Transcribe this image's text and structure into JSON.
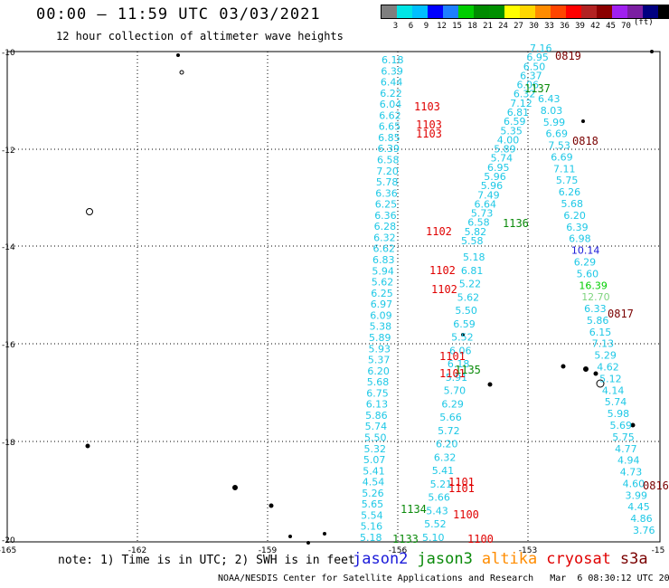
{
  "header": {
    "title": "00:00 – 11:59 UTC 03/03/2021",
    "subtitle": "12 hour collection of altimeter wave heights"
  },
  "legend": {
    "unit": "(ft)",
    "colors": [
      "#7f7f7f",
      "#00e5e5",
      "#00bfff",
      "#0000ff",
      "#1e7fff",
      "#00cd00",
      "#008b00",
      "#009000",
      "#ffff00",
      "#ffd700",
      "#ff8c00",
      "#ff4500",
      "#ff0000",
      "#b22222",
      "#8b0000",
      "#a020f0",
      "#7b1fa2",
      "#000080",
      "#000000"
    ],
    "ticks": [
      "3",
      "6",
      "9",
      "12",
      "15",
      "18",
      "21",
      "24",
      "27",
      "30",
      "33",
      "36",
      "39",
      "42",
      "45",
      "70"
    ]
  },
  "map": {
    "lat_labels": [
      "-10",
      "-12",
      "-14",
      "-16",
      "-18",
      "-20"
    ],
    "lon_labels": [
      "-165",
      "-162",
      "-159",
      "-156",
      "-153",
      "-15"
    ],
    "track_color": "#1ec8e6",
    "tracks": [
      {
        "id": "track-jason2-west",
        "values": [
          "6.18",
          "6.39",
          "6.44",
          "6.22",
          "6.04",
          "6.62",
          "6.65",
          "6.85",
          "6.39",
          "6.58",
          "7.20",
          "5.78",
          "6.36",
          "6.25",
          "6.36",
          "6.28",
          "6.32",
          "6.62",
          "6.83",
          "5.94",
          "5.62",
          "6.25",
          "6.97",
          "6.09",
          "5.38",
          "5.89",
          "5.93",
          "5.37",
          "6.20",
          "5.68",
          "6.75",
          "6.13",
          "5.86",
          "5.74",
          "5.50",
          "5.32",
          "5.07",
          "5.41",
          "4.54",
          "5.26",
          "5.65",
          "5.54",
          "5.16",
          "5.18"
        ]
      },
      {
        "id": "track-jason3-middle",
        "values": [
          "5.18",
          "6.81",
          "5.22",
          "5.62",
          "5.50",
          "6.59",
          "5.52",
          "6.06",
          "6.18",
          "5.91",
          "5.70",
          "6.29",
          "5.66",
          "5.72",
          "6.20",
          "6.32",
          "5.41",
          "5.21",
          "5.66",
          "5.43",
          "5.52",
          "5.10"
        ]
      },
      {
        "id": "track-s3a-diagonal",
        "values": [
          "7.16",
          "6.95",
          "6.50",
          "6.37",
          "6.06",
          "6.32",
          "7.12",
          "6.81",
          "6.59",
          "5.35",
          "4.00",
          "5.89",
          "5.74",
          "6.95",
          "5.96",
          "5.96",
          "7.49",
          "6.64",
          "5.73",
          "6.58",
          "5.82",
          "5.58"
        ]
      },
      {
        "id": "track-s3a-east",
        "values": [
          "6.43",
          "8.03",
          "5.99",
          "6.69",
          "7.53",
          "6.69",
          "7.11",
          "5.75",
          "6.26",
          "5.68",
          "6.20",
          "6.39",
          "6.98",
          "10.14",
          "6.29",
          "5.60",
          "16.39",
          "12.70",
          "6.33",
          "5.86",
          "6.15",
          "7.13",
          "5.29",
          "4.62",
          "5.12",
          "4.14",
          "5.74",
          "5.98",
          "5.69",
          "5.75",
          "4.77",
          "4.94",
          "4.73",
          "4.60",
          "3.99",
          "4.45",
          "4.86",
          "3.76"
        ]
      }
    ],
    "pass_labels": [
      {
        "id": "0819",
        "text": "0819",
        "sat": "s3a"
      },
      {
        "id": "1137",
        "text": "1137",
        "sat": "jason3"
      },
      {
        "id": "1103",
        "text": "1103",
        "sat": "cryosat"
      },
      {
        "id": "1103b",
        "text": "1103",
        "sat": "cryosat"
      },
      {
        "id": "1103c",
        "text": "1103",
        "sat": "cryosat"
      },
      {
        "id": "0818",
        "text": "0818",
        "sat": "s3a"
      },
      {
        "id": "1102",
        "text": "1102",
        "sat": "cryosat"
      },
      {
        "id": "1136",
        "text": "1136",
        "sat": "jason3"
      },
      {
        "id": "1102b",
        "text": "1102",
        "sat": "cryosat"
      },
      {
        "id": "1102c",
        "text": "1102",
        "sat": "cryosat"
      },
      {
        "id": "0817",
        "text": "0817",
        "sat": "s3a"
      },
      {
        "id": "1101",
        "text": "1101",
        "sat": "cryosat"
      },
      {
        "id": "1135",
        "text": "1135",
        "sat": "jason3"
      },
      {
        "id": "1101b",
        "text": "1101",
        "sat": "cryosat"
      },
      {
        "id": "1101c",
        "text": "1101",
        "sat": "cryosat"
      },
      {
        "id": "1101d",
        "text": "1101",
        "sat": "cryosat"
      },
      {
        "id": "0816",
        "text": "0816",
        "sat": "s3a"
      },
      {
        "id": "1134",
        "text": "1134",
        "sat": "jason3"
      },
      {
        "id": "1100",
        "text": "1100",
        "sat": "cryosat"
      },
      {
        "id": "1133",
        "text": "1133",
        "sat": "jason3"
      },
      {
        "id": "1100b",
        "text": "1100",
        "sat": "cryosat"
      }
    ]
  },
  "note": "note: 1) Time is in UTC; 2) SWH is in feet",
  "satellites": [
    {
      "name": "jason2",
      "color": "#1a1ad9"
    },
    {
      "name": "jason3",
      "color": "#0a8a0a"
    },
    {
      "name": "altika",
      "color": "#ff8c00"
    },
    {
      "name": "cryosat",
      "color": "#e00000"
    },
    {
      "name": "s3a",
      "color": "#7a0000"
    }
  ],
  "footer": "NOAA/NESDIS Center for Satellite Applications and Research   Mar  6 08:30:12 UTC 2021"
}
